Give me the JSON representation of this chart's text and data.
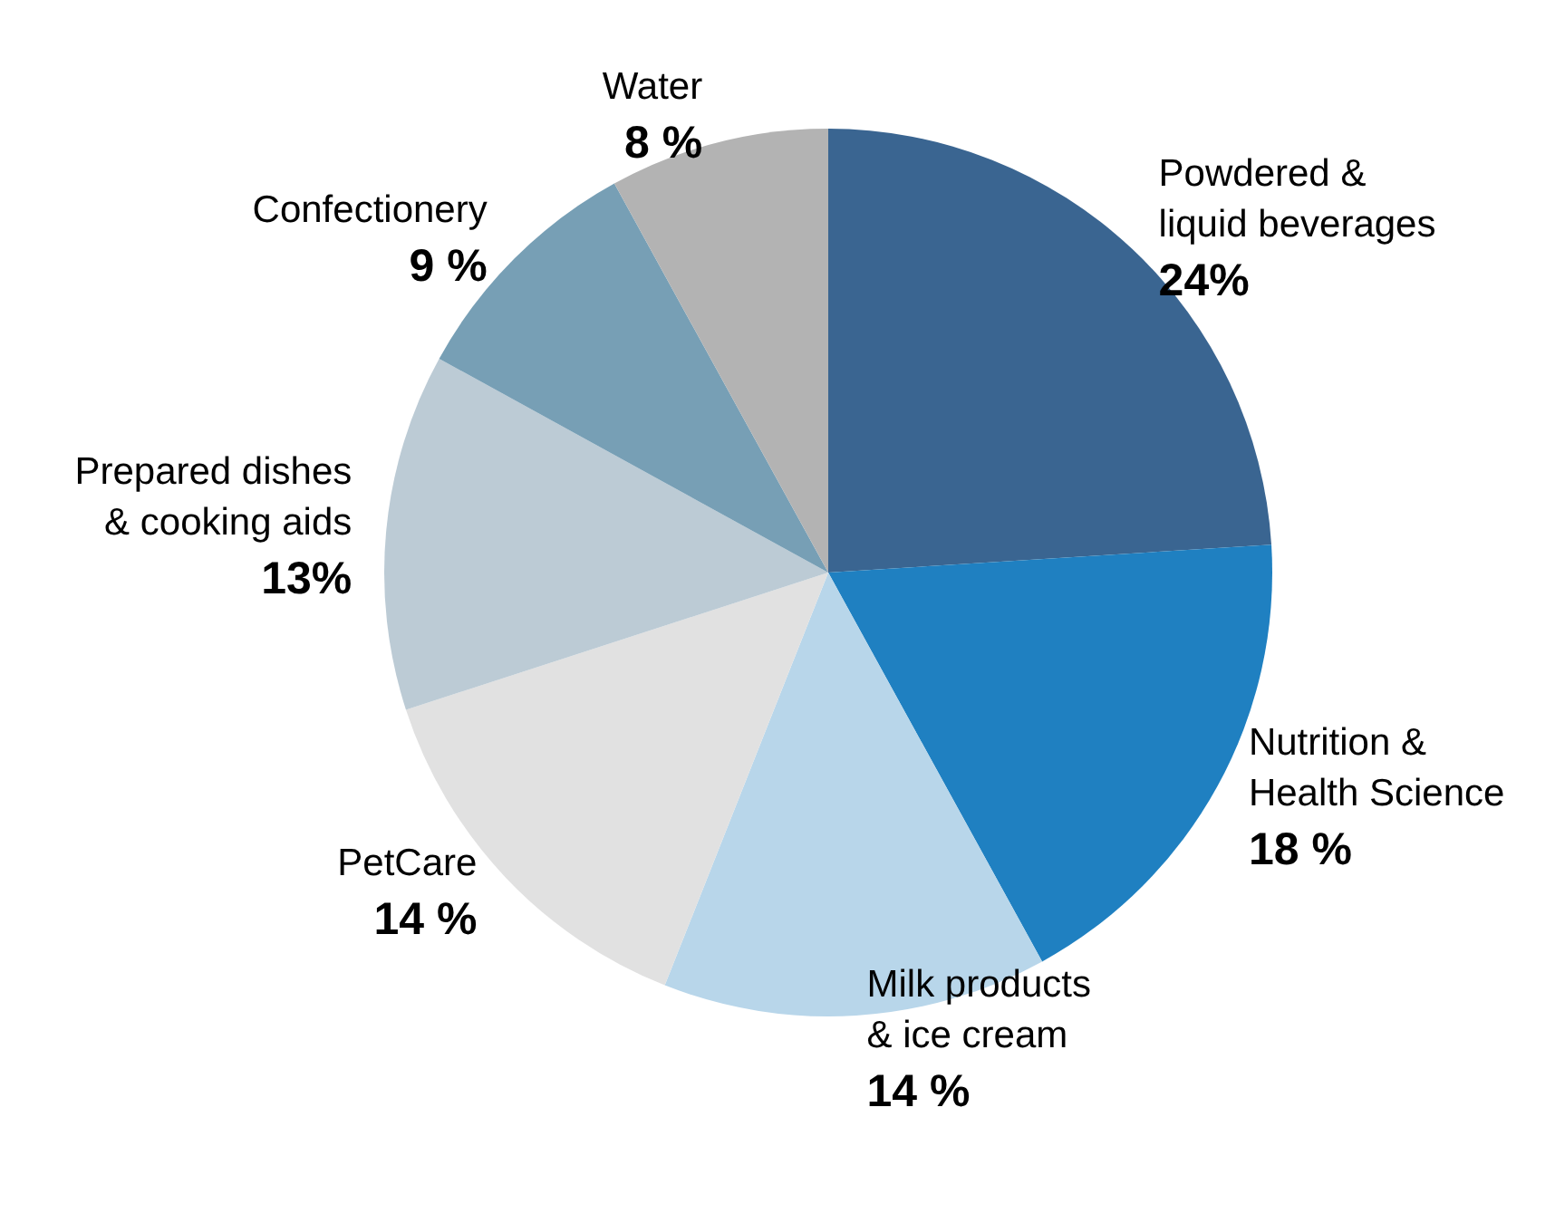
{
  "chart_data": {
    "type": "pie",
    "categories": [
      "Powdered &\nliquid beverages",
      "Nutrition &\nHealth Science",
      "Milk products\n& ice cream",
      "PetCare",
      "Prepared dishes\n& cooking aids",
      "Confectionery",
      "Water"
    ],
    "values": [
      24,
      18,
      14,
      14,
      13,
      9,
      8
    ],
    "value_labels": [
      "24%",
      "18 %",
      "14 %",
      "14 %",
      "13%",
      "9 %",
      "8 %"
    ],
    "colors": [
      "#3a6591",
      "#1f80c1",
      "#b8d6ea",
      "#e1e1e1",
      "#bccbd5",
      "#779fb5",
      "#b3b3b3"
    ],
    "legend": false
  }
}
